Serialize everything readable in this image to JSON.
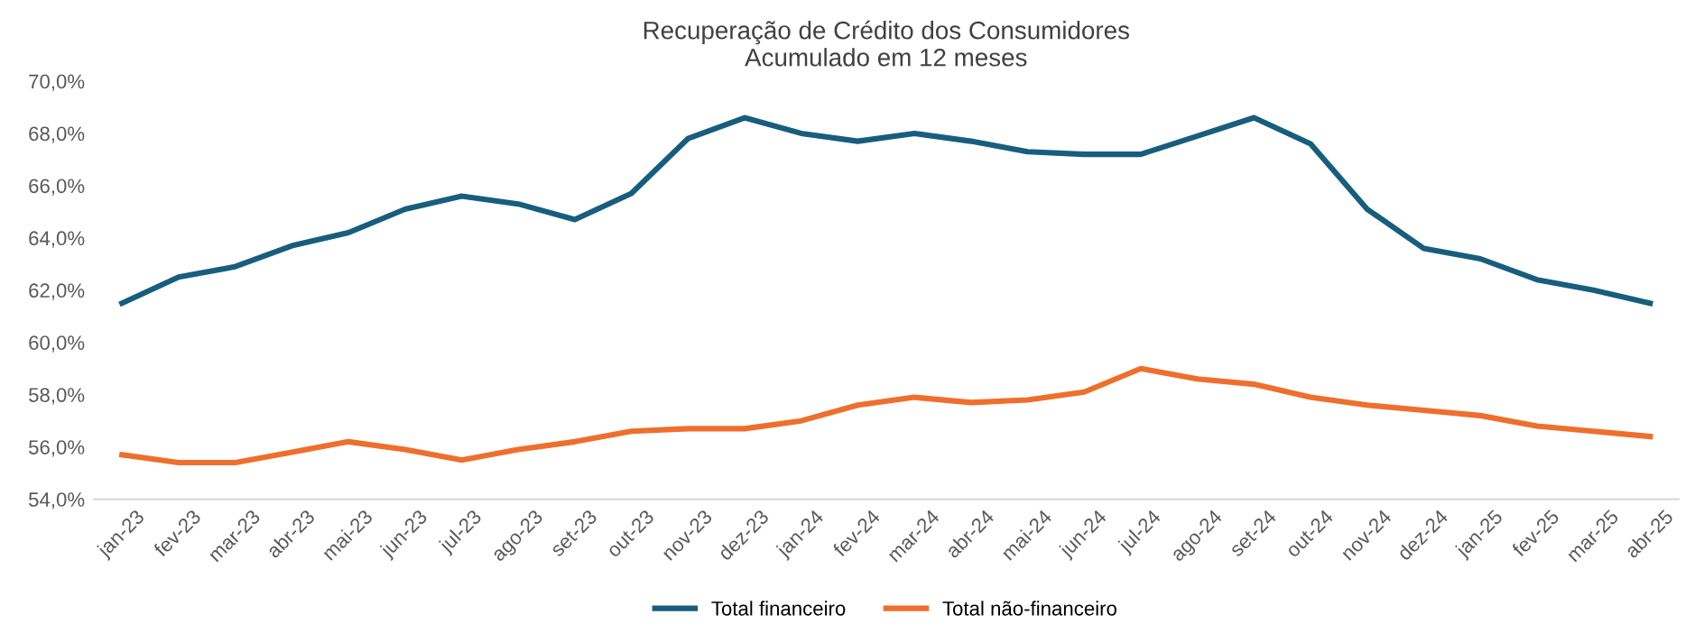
{
  "chart_data": {
    "type": "line",
    "title": "Recuperação de Crédito dos Consumidores\nAcumulado em 12 meses",
    "categories": [
      "jan-23",
      "fev-23",
      "mar-23",
      "abr-23",
      "mai-23",
      "jun-23",
      "jul-23",
      "ago-23",
      "set-23",
      "out-23",
      "nov-23",
      "dez-23",
      "jan-24",
      "fev-24",
      "mar-24",
      "abr-24",
      "mai-24",
      "jun-24",
      "jul-24",
      "ago-24",
      "set-24",
      "out-24",
      "nov-24",
      "dez-24",
      "jan-25",
      "fev-25",
      "mar-25",
      "abr-25"
    ],
    "series": [
      {
        "name": "Total financeiro",
        "color": "#175e7e",
        "values": [
          61.5,
          62.5,
          62.9,
          63.7,
          64.2,
          65.1,
          65.6,
          65.3,
          64.7,
          65.7,
          67.8,
          68.6,
          68.0,
          67.7,
          68.0,
          67.7,
          67.3,
          67.2,
          67.2,
          67.9,
          68.6,
          67.6,
          65.1,
          63.6,
          63.2,
          62.4,
          62.0,
          61.5
        ]
      },
      {
        "name": "Total não-financeiro",
        "color": "#ee6f2d",
        "values": [
          55.7,
          55.4,
          55.4,
          55.8,
          56.2,
          55.9,
          55.5,
          55.9,
          56.2,
          56.6,
          56.7,
          56.7,
          57.0,
          57.6,
          57.9,
          57.7,
          57.8,
          58.1,
          59.0,
          58.6,
          58.4,
          57.9,
          57.6,
          57.4,
          57.2,
          56.8,
          56.6,
          56.4
        ]
      }
    ],
    "ylim": [
      54,
      70
    ],
    "yticks": [
      {
        "value": 54,
        "label": "54,0%"
      },
      {
        "value": 56,
        "label": "56,0%"
      },
      {
        "value": 58,
        "label": "58,0%"
      },
      {
        "value": 60,
        "label": "60,0%"
      },
      {
        "value": 62,
        "label": "62,0%"
      },
      {
        "value": 64,
        "label": "64,0%"
      },
      {
        "value": 66,
        "label": "66,0%"
      },
      {
        "value": 68,
        "label": "68,0%"
      },
      {
        "value": 70,
        "label": "70,0%"
      }
    ],
    "grid": false,
    "legend": "bottom",
    "marker": "none",
    "line_style": "solid"
  }
}
